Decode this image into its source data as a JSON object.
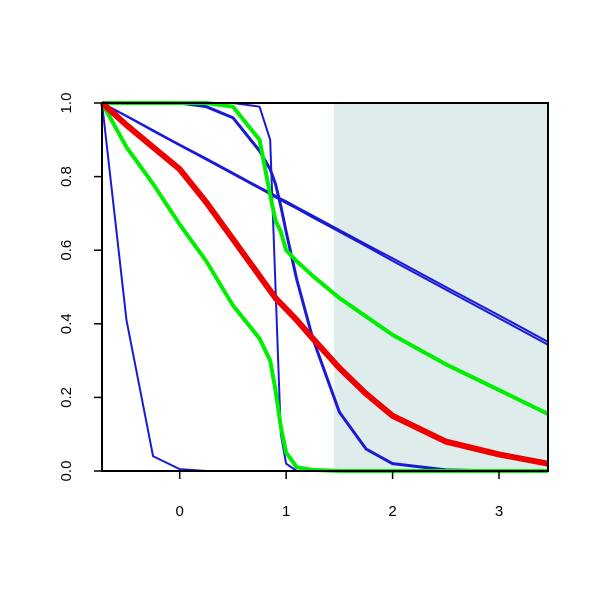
{
  "chart_data": {
    "type": "line",
    "x": [
      -0.73,
      -0.5,
      -0.25,
      0,
      0.25,
      0.5,
      0.75,
      0.85,
      0.9,
      0.95,
      1.0,
      1.1,
      1.25,
      1.5,
      1.75,
      2,
      2.5,
      3,
      3.46
    ],
    "series": [
      {
        "color": "#1a1ad6",
        "width": 2,
        "values": [
          1,
          0.41,
          0.04,
          0.005,
          0,
          0,
          0,
          0,
          0,
          0,
          0,
          0,
          0,
          0,
          0,
          0,
          0,
          0,
          0
        ]
      },
      {
        "color": "#1a1ad6",
        "width": 2,
        "values": [
          1,
          1,
          1,
          1,
          1,
          1,
          0.99,
          0.9,
          0.5,
          0.1,
          0.02,
          0,
          0,
          0,
          0,
          0,
          0,
          0,
          0
        ]
      },
      {
        "color": "#1a1ad6",
        "width": 3,
        "values": [
          1,
          1,
          1,
          1,
          0.99,
          0.96,
          0.87,
          0.82,
          0.78,
          0.72,
          0.65,
          0.52,
          0.36,
          0.16,
          0.06,
          0.02,
          0.003,
          0,
          0
        ]
      },
      {
        "color": "#1a1ad6",
        "width": 2,
        "values": [
          1,
          0.965,
          0.926,
          0.887,
          0.849,
          0.81,
          0.771,
          0.756,
          0.748,
          0.74,
          0.733,
          0.717,
          0.694,
          0.655,
          0.616,
          0.578,
          0.5,
          0.423,
          0.351
        ]
      },
      {
        "color": "#1a1ad6",
        "width": 2,
        "values": [
          1,
          0.964,
          0.924,
          0.885,
          0.846,
          0.807,
          0.768,
          0.752,
          0.744,
          0.736,
          0.728,
          0.713,
          0.689,
          0.65,
          0.611,
          0.571,
          0.493,
          0.415,
          0.343
        ]
      },
      {
        "color": "#00ee00",
        "width": 4,
        "values": [
          1,
          1,
          1,
          1,
          1,
          0.99,
          0.9,
          0.75,
          0.68,
          0.65,
          0.6,
          0.57,
          0.53,
          0.47,
          0.42,
          0.37,
          0.29,
          0.22,
          0.155
        ]
      },
      {
        "color": "#00ee00",
        "width": 4,
        "values": [
          1,
          0.88,
          0.78,
          0.67,
          0.57,
          0.45,
          0.36,
          0.3,
          0.22,
          0.12,
          0.05,
          0.01,
          0.003,
          0,
          0,
          0,
          0,
          0,
          0
        ]
      },
      {
        "color": "#ee0000",
        "width": 6,
        "values": [
          1,
          0.94,
          0.88,
          0.82,
          0.73,
          0.63,
          0.53,
          0.49,
          0.47,
          0.455,
          0.44,
          0.41,
          0.36,
          0.28,
          0.21,
          0.15,
          0.08,
          0.045,
          0.02
        ]
      }
    ],
    "shaded_region": {
      "xlim": [
        1.45,
        3.46
      ],
      "color": "#deeceb"
    },
    "xlim": [
      -0.73,
      3.46
    ],
    "ylim": [
      0,
      1
    ],
    "xticks": [
      0,
      1,
      2,
      3
    ],
    "yticks": [
      {
        "value": 0,
        "label": "0.0"
      },
      {
        "value": 0.2,
        "label": "0.2"
      },
      {
        "value": 0.4,
        "label": "0.4"
      },
      {
        "value": 0.6,
        "label": "0.6"
      },
      {
        "value": 0.8,
        "label": "0.8"
      },
      {
        "value": 1,
        "label": "1.0"
      }
    ]
  }
}
